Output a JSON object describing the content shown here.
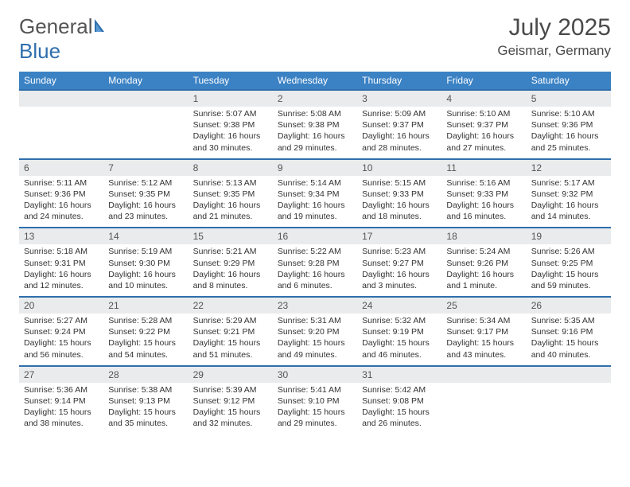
{
  "brand": {
    "part1": "General",
    "part2": "Blue"
  },
  "title": "July 2025",
  "location": "Geismar, Germany",
  "colors": {
    "header_bg": "#3b82c4",
    "header_text": "#ffffff",
    "daynum_bg": "#e9ebec",
    "border": "#2f6fad",
    "text": "#333333",
    "title_text": "#4a4a4a"
  },
  "day_names": [
    "Sunday",
    "Monday",
    "Tuesday",
    "Wednesday",
    "Thursday",
    "Friday",
    "Saturday"
  ],
  "weeks": [
    [
      null,
      null,
      {
        "n": "1",
        "sr": "5:07 AM",
        "ss": "9:38 PM",
        "dl": "16 hours and 30 minutes."
      },
      {
        "n": "2",
        "sr": "5:08 AM",
        "ss": "9:38 PM",
        "dl": "16 hours and 29 minutes."
      },
      {
        "n": "3",
        "sr": "5:09 AM",
        "ss": "9:37 PM",
        "dl": "16 hours and 28 minutes."
      },
      {
        "n": "4",
        "sr": "5:10 AM",
        "ss": "9:37 PM",
        "dl": "16 hours and 27 minutes."
      },
      {
        "n": "5",
        "sr": "5:10 AM",
        "ss": "9:36 PM",
        "dl": "16 hours and 25 minutes."
      }
    ],
    [
      {
        "n": "6",
        "sr": "5:11 AM",
        "ss": "9:36 PM",
        "dl": "16 hours and 24 minutes."
      },
      {
        "n": "7",
        "sr": "5:12 AM",
        "ss": "9:35 PM",
        "dl": "16 hours and 23 minutes."
      },
      {
        "n": "8",
        "sr": "5:13 AM",
        "ss": "9:35 PM",
        "dl": "16 hours and 21 minutes."
      },
      {
        "n": "9",
        "sr": "5:14 AM",
        "ss": "9:34 PM",
        "dl": "16 hours and 19 minutes."
      },
      {
        "n": "10",
        "sr": "5:15 AM",
        "ss": "9:33 PM",
        "dl": "16 hours and 18 minutes."
      },
      {
        "n": "11",
        "sr": "5:16 AM",
        "ss": "9:33 PM",
        "dl": "16 hours and 16 minutes."
      },
      {
        "n": "12",
        "sr": "5:17 AM",
        "ss": "9:32 PM",
        "dl": "16 hours and 14 minutes."
      }
    ],
    [
      {
        "n": "13",
        "sr": "5:18 AM",
        "ss": "9:31 PM",
        "dl": "16 hours and 12 minutes."
      },
      {
        "n": "14",
        "sr": "5:19 AM",
        "ss": "9:30 PM",
        "dl": "16 hours and 10 minutes."
      },
      {
        "n": "15",
        "sr": "5:21 AM",
        "ss": "9:29 PM",
        "dl": "16 hours and 8 minutes."
      },
      {
        "n": "16",
        "sr": "5:22 AM",
        "ss": "9:28 PM",
        "dl": "16 hours and 6 minutes."
      },
      {
        "n": "17",
        "sr": "5:23 AM",
        "ss": "9:27 PM",
        "dl": "16 hours and 3 minutes."
      },
      {
        "n": "18",
        "sr": "5:24 AM",
        "ss": "9:26 PM",
        "dl": "16 hours and 1 minute."
      },
      {
        "n": "19",
        "sr": "5:26 AM",
        "ss": "9:25 PM",
        "dl": "15 hours and 59 minutes."
      }
    ],
    [
      {
        "n": "20",
        "sr": "5:27 AM",
        "ss": "9:24 PM",
        "dl": "15 hours and 56 minutes."
      },
      {
        "n": "21",
        "sr": "5:28 AM",
        "ss": "9:22 PM",
        "dl": "15 hours and 54 minutes."
      },
      {
        "n": "22",
        "sr": "5:29 AM",
        "ss": "9:21 PM",
        "dl": "15 hours and 51 minutes."
      },
      {
        "n": "23",
        "sr": "5:31 AM",
        "ss": "9:20 PM",
        "dl": "15 hours and 49 minutes."
      },
      {
        "n": "24",
        "sr": "5:32 AM",
        "ss": "9:19 PM",
        "dl": "15 hours and 46 minutes."
      },
      {
        "n": "25",
        "sr": "5:34 AM",
        "ss": "9:17 PM",
        "dl": "15 hours and 43 minutes."
      },
      {
        "n": "26",
        "sr": "5:35 AM",
        "ss": "9:16 PM",
        "dl": "15 hours and 40 minutes."
      }
    ],
    [
      {
        "n": "27",
        "sr": "5:36 AM",
        "ss": "9:14 PM",
        "dl": "15 hours and 38 minutes."
      },
      {
        "n": "28",
        "sr": "5:38 AM",
        "ss": "9:13 PM",
        "dl": "15 hours and 35 minutes."
      },
      {
        "n": "29",
        "sr": "5:39 AM",
        "ss": "9:12 PM",
        "dl": "15 hours and 32 minutes."
      },
      {
        "n": "30",
        "sr": "5:41 AM",
        "ss": "9:10 PM",
        "dl": "15 hours and 29 minutes."
      },
      {
        "n": "31",
        "sr": "5:42 AM",
        "ss": "9:08 PM",
        "dl": "15 hours and 26 minutes."
      },
      null,
      null
    ]
  ],
  "labels": {
    "sunrise": "Sunrise:",
    "sunset": "Sunset:",
    "daylight": "Daylight:"
  }
}
